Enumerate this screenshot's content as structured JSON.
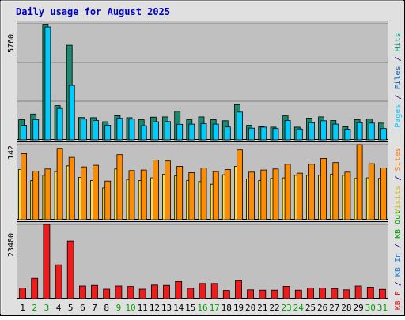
{
  "chart_data": {
    "type": "bar",
    "title": "Daily usage for August 2025",
    "categories": [
      "1",
      "2",
      "3",
      "4",
      "5",
      "6",
      "7",
      "8",
      "9",
      "10",
      "11",
      "12",
      "13",
      "14",
      "15",
      "16",
      "17",
      "18",
      "19",
      "20",
      "21",
      "22",
      "23",
      "24",
      "25",
      "26",
      "27",
      "28",
      "29",
      "30",
      "31"
    ],
    "weekend_days": [
      "2",
      "3",
      "9",
      "10",
      "16",
      "17",
      "23",
      "24",
      "30",
      "31"
    ],
    "panels": [
      {
        "id": "top",
        "max_label": "5760",
        "ylim": [
          0,
          5760
        ],
        "axis_label": [
          {
            "text": "Pages",
            "color": "#00c8ff"
          },
          {
            "text": " / ",
            "color": "#000080"
          },
          {
            "text": "Files",
            "color": "#0060c0"
          },
          {
            "text": " / ",
            "color": "#000080"
          },
          {
            "text": "Hits",
            "color": "#00a080"
          }
        ],
        "series": [
          {
            "name": "Hits",
            "color": "#1a8a6e",
            "values": [
              1000,
              1280,
              5700,
              1700,
              4700,
              1110,
              1100,
              900,
              1200,
              1100,
              1000,
              1130,
              1140,
              1420,
              1000,
              1140,
              1000,
              950,
              1750,
              720,
              650,
              630,
              1190,
              630,
              1080,
              1140,
              960,
              650,
              1000,
              1030,
              830
            ]
          },
          {
            "name": "Files",
            "color": "#00ccff",
            "values": [
              720,
              1000,
              5600,
              1560,
              2700,
              1030,
              960,
              730,
              1070,
              1030,
              700,
              900,
              910,
              770,
              780,
              800,
              780,
              640,
              1380,
              580,
              630,
              560,
              960,
              540,
              850,
              950,
              780,
              530,
              850,
              830,
              560
            ]
          }
        ]
      },
      {
        "id": "middle",
        "max_label": "142",
        "ylim": [
          0,
          142
        ],
        "axis_label": [
          {
            "text": "Visits",
            "color": "#d0c000"
          },
          {
            "text": " / ",
            "color": "#000080"
          },
          {
            "text": "Sites",
            "color": "#ff8000"
          }
        ],
        "series": [
          {
            "name": "Visits",
            "color": "#ffe030",
            "values": [
              95,
              74,
              84,
              91,
              102,
              80,
              74,
              60,
              96,
              76,
              74,
              79,
              86,
              83,
              74,
              72,
              67,
              85,
              101,
              77,
              74,
              78,
              79,
              84,
              84,
              84,
              86,
              84,
              78,
              79,
              78
            ]
          },
          {
            "name": "Sites",
            "color": "#ff8c00",
            "values": [
              125,
              92,
              96,
              135,
              118,
              100,
              103,
              73,
              123,
              93,
              94,
              113,
              111,
              101,
              89,
              98,
              91,
              95,
              132,
              90,
              94,
              96,
              105,
              88,
              105,
              116,
              108,
              90,
              142,
              106,
              98
            ]
          }
        ]
      },
      {
        "id": "bottom",
        "max_label": "23480",
        "ylim": [
          0,
          23480
        ],
        "axis_label": [
          {
            "text": "KB F",
            "color": "#e02020"
          },
          {
            "text": " / ",
            "color": "#000080"
          },
          {
            "text": "KB In",
            "color": "#2080e0"
          },
          {
            "text": " / ",
            "color": "#000080"
          },
          {
            "text": "KB Out",
            "color": "#00a000"
          }
        ],
        "series": [
          {
            "name": "KB F",
            "color": "#ee1c1c",
            "values": [
              3400,
              6450,
              23480,
              10700,
              18200,
              4000,
              4200,
              3000,
              4000,
              3850,
              3000,
              4300,
              4200,
              5400,
              3300,
              4800,
              4800,
              2600,
              5700,
              2800,
              2700,
              2700,
              3900,
              2700,
              3400,
              3400,
              3200,
              2800,
              4000,
              3650,
              2950
            ]
          }
        ]
      }
    ],
    "colors": {
      "background": "#c0c0c0",
      "outer_background": "#e0e0e0",
      "title": "#0000cc",
      "day_label": "#000000",
      "weekend_label": "#00a000",
      "grid": "#808080"
    }
  }
}
